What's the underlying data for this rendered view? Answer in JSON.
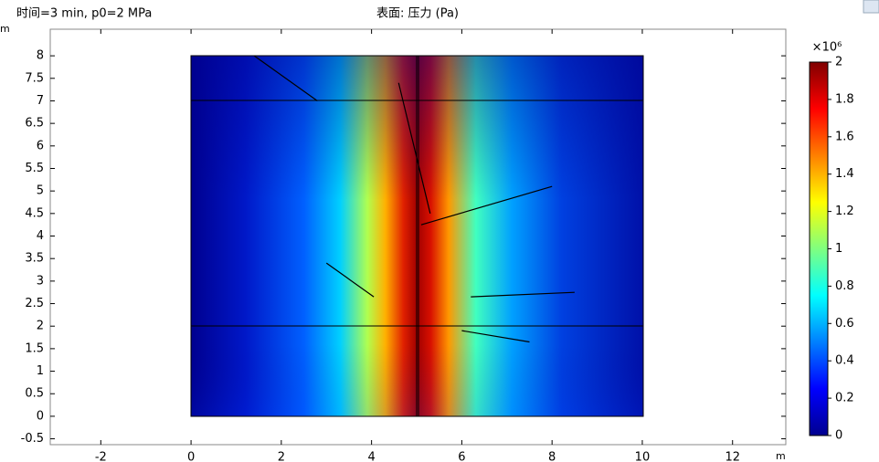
{
  "chart_data": {
    "type": "surface",
    "title": "表面: 压力 (Pa)",
    "subtitle": "时间=3 min, p0=2 MPa",
    "xlabel": "m",
    "ylabel": "m",
    "xlim": [
      -3.12,
      13.18
    ],
    "xticks": [
      -2,
      0,
      2,
      4,
      6,
      8,
      10,
      12
    ],
    "ylim": [
      -0.63,
      8.59
    ],
    "yticks": [
      -0.5,
      0,
      0.5,
      1,
      1.5,
      2,
      2.5,
      3,
      3.5,
      4,
      4.5,
      5,
      5.5,
      6,
      6.5,
      7,
      7.5,
      8
    ],
    "colorbar": {
      "multiplier": "×10⁶",
      "clim": [
        0,
        2
      ],
      "ticks": [
        0,
        0.2,
        0.4,
        0.6,
        0.8,
        1,
        1.2,
        1.4,
        1.6,
        1.8,
        2
      ]
    },
    "fractures": [
      {
        "x": [
          1.4,
          2.8
        ],
        "y": [
          8,
          7.0
        ]
      },
      {
        "x": [
          4.6,
          5.3
        ],
        "y": [
          7.4,
          4.5
        ]
      },
      {
        "x": [
          5.1,
          8.0
        ],
        "y": [
          4.25,
          5.1
        ]
      },
      {
        "x": [
          3.0,
          4.05
        ],
        "y": [
          3.4,
          2.65
        ]
      },
      {
        "x": [
          6.2,
          8.5
        ],
        "y": [
          2.65,
          2.75
        ]
      },
      {
        "x": [
          6.0,
          7.5
        ],
        "y": [
          1.9,
          1.65
        ]
      }
    ]
  }
}
